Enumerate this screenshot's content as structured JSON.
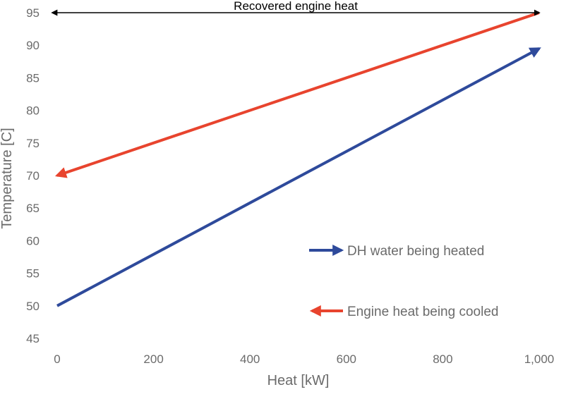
{
  "chart_data": {
    "type": "line",
    "title": "",
    "xlabel": "Heat [kW]",
    "ylabel": "Temperature [C]",
    "xlim": [
      0,
      1000
    ],
    "ylim": [
      45,
      95
    ],
    "x_ticks": [
      0,
      200,
      400,
      600,
      800,
      1000
    ],
    "x_tick_labels": [
      "0",
      "200",
      "400",
      "600",
      "800",
      "1,000"
    ],
    "y_ticks": [
      45,
      50,
      55,
      60,
      65,
      70,
      75,
      80,
      85,
      90,
      95
    ],
    "y_tick_labels": [
      "45",
      "50",
      "55",
      "60",
      "65",
      "70",
      "75",
      "80",
      "85",
      "90",
      "95"
    ],
    "grid": false,
    "series": [
      {
        "name": "DH water being heated",
        "x": [
          0,
          1000
        ],
        "y": [
          50,
          89.5
        ],
        "color": "#2e4a9b",
        "arrow_at": "end"
      },
      {
        "name": "Engine heat being cooled",
        "x": [
          0,
          1000
        ],
        "y": [
          70,
          95
        ],
        "color": "#e8442e",
        "arrow_at": "start"
      }
    ],
    "annotations": [
      {
        "text": "Recovered engine heat",
        "x_start": -10,
        "x_end": 1000,
        "y": 95,
        "color": "#000000",
        "style": "double-arrow"
      }
    ],
    "legend": {
      "placement": "bottom-right-of-center"
    }
  }
}
